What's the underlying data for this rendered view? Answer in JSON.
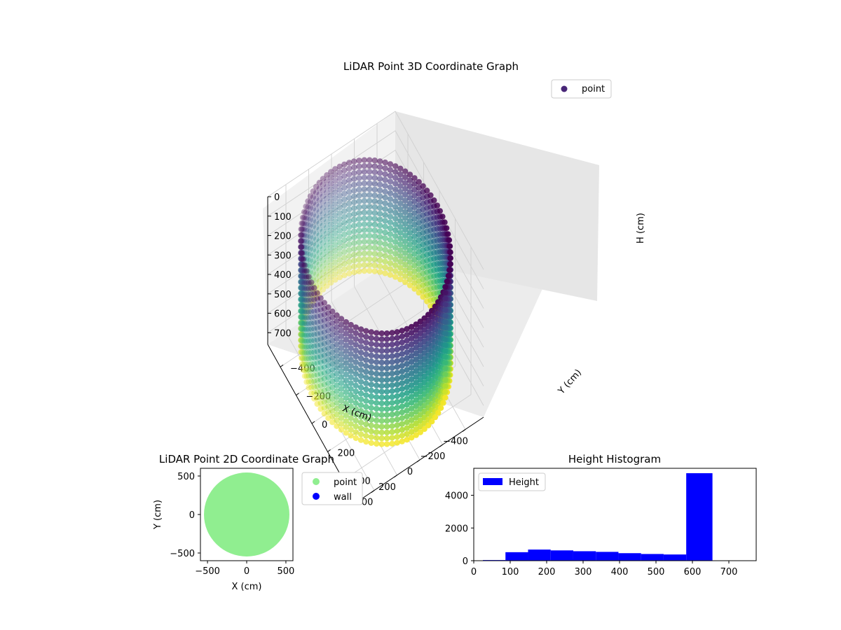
{
  "chart_data": [
    {
      "type": "scatter3d",
      "title": "LiDAR Point 3D Coordinate Graph",
      "xlabel": "X (cm)",
      "ylabel": "Y (cm)",
      "zlabel": "H (cm)",
      "xlim": [
        -560,
        560
      ],
      "ylim": [
        -560,
        560
      ],
      "zlim": [
        0,
        760
      ],
      "z_inverted": true,
      "xticks": [
        -400,
        -200,
        0,
        200,
        400
      ],
      "yticks": [
        -400,
        -200,
        0,
        200,
        400
      ],
      "zticks": [
        0,
        100,
        200,
        300,
        400,
        500,
        600,
        700
      ],
      "colormap": "viridis",
      "legend": [
        "point"
      ],
      "legend_loc": "upper right",
      "grid": true,
      "structure": {
        "shape": "cylinder wall",
        "radius": 540,
        "height_range": [
          70,
          650
        ],
        "angular_step_deg": 4,
        "height_step": 30
      }
    },
    {
      "type": "scatter",
      "title": "LiDAR Point 2D Coordinate Graph",
      "xlabel": "X (cm)",
      "ylabel": "Y (cm)",
      "xlim": [
        -590,
        590
      ],
      "ylim": [
        -600,
        600
      ],
      "xticks": [
        -500,
        0,
        500
      ],
      "yticks": [
        -500,
        0,
        500
      ],
      "series": [
        {
          "name": "point",
          "color": "#90ee90",
          "shape": "filled disk",
          "radius": 545
        },
        {
          "name": "wall",
          "color": "#0000ff"
        }
      ],
      "legend_loc": "outside upper right"
    },
    {
      "type": "bar",
      "title": "Height Histogram",
      "xlim": [
        0,
        775
      ],
      "ylim": [
        0,
        5650
      ],
      "xticks": [
        0,
        100,
        200,
        300,
        400,
        500,
        600,
        700
      ],
      "yticks": [
        0,
        2000,
        4000
      ],
      "bin_edges": [
        25,
        87,
        149,
        211,
        273,
        335,
        397,
        459,
        521,
        583,
        655
      ],
      "counts": [
        40,
        520,
        680,
        630,
        580,
        540,
        460,
        410,
        380,
        5350
      ],
      "color": "#0000ff",
      "legend": [
        "Height"
      ],
      "legend_loc": "upper left"
    }
  ]
}
